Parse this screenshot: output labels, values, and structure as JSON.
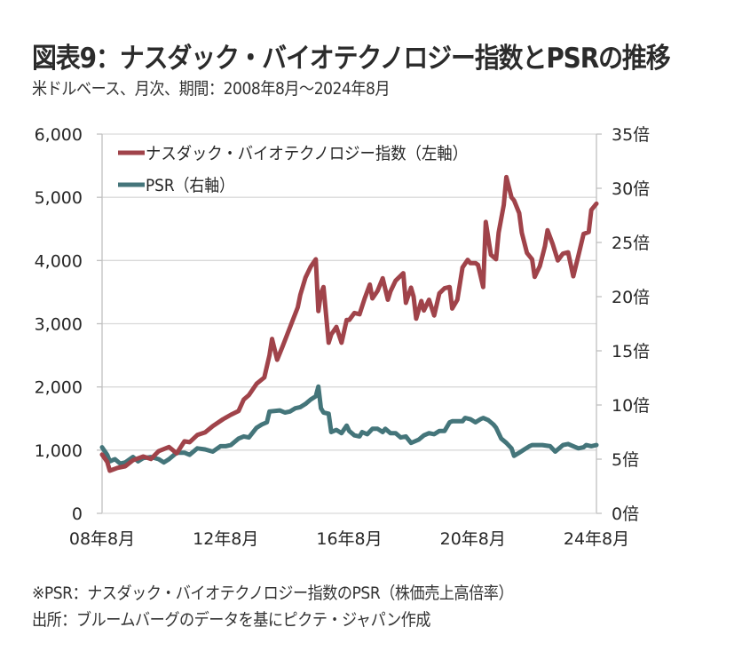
{
  "title": "図表9：ナスダック・バイオテクノロジー指数とPSRの推移",
  "subtitle": "米ドルベース、月次、期間：2008年8月～2024年8月",
  "footnotes": [
    "※PSR：ナスダック・バイオテクノロジー指数のPSR（株価売上高倍率）",
    "出所：ブルームバーグのデータを基にピクテ・ジャパン作成"
  ],
  "chart_data": {
    "type": "line",
    "title": "図表9：ナスダック・バイオテクノロジー指数とPSRの推移",
    "xlabel": "",
    "ylabel": "",
    "x_unit": "months since 2008-08",
    "xlim": [
      0,
      192
    ],
    "x_ticks": [
      {
        "value": 0,
        "label": "08年8月"
      },
      {
        "value": 48,
        "label": "12年8月"
      },
      {
        "value": 96,
        "label": "16年8月"
      },
      {
        "value": 144,
        "label": "20年8月"
      },
      {
        "value": 192,
        "label": "24年8月"
      }
    ],
    "y_left": {
      "lim": [
        0,
        6000
      ],
      "ticks": [
        0,
        1000,
        2000,
        3000,
        4000,
        5000,
        6000
      ],
      "tick_labels": [
        "0",
        "1,000",
        "2,000",
        "3,000",
        "4,000",
        "5,000",
        "6,000"
      ]
    },
    "y_right": {
      "lim": [
        0,
        35
      ],
      "ticks": [
        0,
        5,
        10,
        15,
        20,
        25,
        30,
        35
      ],
      "tick_labels": [
        "0倍",
        "5倍",
        "10倍",
        "15倍",
        "20倍",
        "25倍",
        "30倍",
        "35倍"
      ]
    },
    "grid": true,
    "legend_position": "top-left",
    "series": [
      {
        "name": "ナスダック・バイオテクノロジー指数（左軸）",
        "axis": "left",
        "color": "#A0434A",
        "x": [
          0,
          2,
          3,
          6,
          9,
          12,
          16,
          19,
          22,
          26,
          29,
          32,
          34,
          37,
          40,
          43,
          47,
          50,
          53,
          55,
          57,
          60,
          63,
          65,
          66,
          68,
          70,
          72,
          74,
          76,
          77,
          79,
          81,
          83,
          84,
          85,
          86,
          88,
          89,
          91,
          93,
          95,
          96,
          98,
          100,
          102,
          104,
          105,
          107,
          109,
          111,
          112,
          114,
          117,
          118,
          120,
          121,
          122,
          124,
          125,
          127,
          129,
          131,
          133,
          135,
          136,
          138,
          140,
          142,
          143,
          145,
          146,
          148,
          149,
          151,
          153,
          154,
          156,
          157,
          159,
          160,
          162,
          163,
          165,
          167,
          168,
          170,
          172,
          173,
          175,
          177,
          179,
          181,
          183,
          185,
          187,
          189,
          190,
          192
        ],
        "values": [
          930,
          815,
          675,
          720,
          745,
          840,
          900,
          860,
          985,
          1050,
          950,
          1140,
          1125,
          1240,
          1280,
          1380,
          1490,
          1560,
          1620,
          1800,
          1870,
          2050,
          2150,
          2500,
          2760,
          2430,
          2630,
          2840,
          3050,
          3260,
          3460,
          3730,
          3900,
          4020,
          3200,
          3480,
          3580,
          2700,
          2830,
          2950,
          2700,
          3060,
          3060,
          3170,
          3150,
          3400,
          3620,
          3400,
          3520,
          3720,
          3380,
          3510,
          3680,
          3800,
          3330,
          3570,
          3430,
          3080,
          3360,
          3210,
          3380,
          3130,
          3480,
          3560,
          3580,
          3240,
          3380,
          3890,
          4010,
          3960,
          3960,
          3930,
          3580,
          4610,
          4090,
          4020,
          4440,
          4880,
          5320,
          5000,
          4950,
          4750,
          4440,
          4120,
          4020,
          3740,
          3910,
          4230,
          4480,
          4260,
          4000,
          4110,
          4130,
          3750,
          4080,
          4420,
          4450,
          4800,
          4900
        ]
      },
      {
        "name": "PSR（右軸）",
        "axis": "right",
        "color": "#44757A",
        "x": [
          0,
          2,
          3,
          5,
          7,
          9,
          12,
          14,
          16,
          19,
          22,
          24,
          26,
          29,
          32,
          34,
          37,
          40,
          43,
          46,
          48,
          50,
          53,
          55,
          57,
          60,
          62,
          64,
          65,
          69,
          71,
          73,
          75,
          77,
          79,
          81,
          83,
          84,
          85,
          86,
          88,
          89,
          91,
          93,
          95,
          96,
          98,
          100,
          101,
          103,
          105,
          107,
          109,
          110,
          112,
          114,
          116,
          118,
          120,
          121,
          123,
          125,
          127,
          129,
          131,
          133,
          135,
          136,
          138,
          140,
          141,
          143,
          145,
          147,
          148,
          150,
          152,
          153,
          155,
          157,
          159,
          160,
          162,
          164,
          166,
          167,
          169,
          171,
          174,
          176,
          179,
          181,
          183,
          185,
          187,
          188,
          190,
          192
        ],
        "values": [
          6.1,
          5.4,
          4.8,
          5.0,
          4.6,
          4.7,
          5.2,
          4.8,
          5.1,
          5.2,
          5.0,
          4.7,
          5.0,
          5.6,
          5.6,
          5.4,
          6.0,
          5.9,
          5.7,
          6.2,
          6.2,
          6.3,
          6.9,
          7.1,
          7.0,
          7.9,
          8.2,
          8.4,
          9.4,
          9.5,
          9.3,
          9.4,
          9.7,
          9.8,
          10.1,
          10.5,
          10.8,
          11.7,
          9.7,
          9.3,
          9.2,
          7.5,
          7.7,
          7.4,
          8.1,
          7.6,
          7.2,
          7.1,
          7.5,
          7.3,
          7.8,
          7.8,
          7.5,
          7.8,
          7.4,
          7.4,
          7.0,
          7.1,
          6.5,
          6.6,
          6.8,
          7.2,
          7.4,
          7.3,
          7.6,
          7.6,
          8.4,
          8.5,
          8.5,
          8.5,
          8.8,
          8.7,
          8.4,
          8.7,
          8.8,
          8.6,
          8.2,
          7.9,
          6.9,
          6.5,
          6.0,
          5.3,
          5.6,
          5.9,
          6.2,
          6.3,
          6.3,
          6.3,
          6.2,
          5.7,
          6.3,
          6.4,
          6.2,
          6.0,
          6.1,
          6.3,
          6.2,
          6.3
        ]
      }
    ]
  }
}
